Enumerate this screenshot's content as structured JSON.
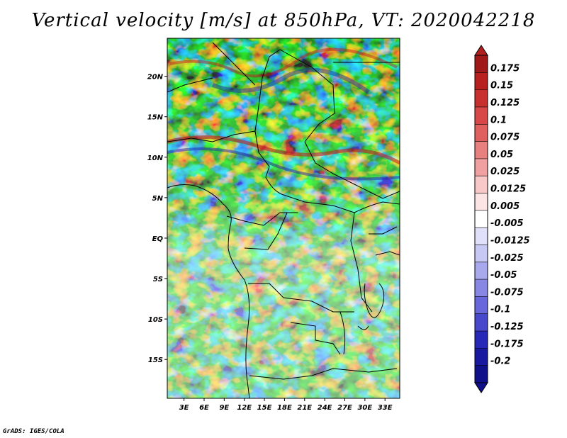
{
  "title": "Vertical velocity [m/s] at 850hPa, VT: 2020042218",
  "credit": "GrADS: IGES/COLA",
  "map": {
    "lat_labels": [
      "20N",
      "15N",
      "10N",
      "5N",
      "EQ",
      "5S",
      "10S",
      "15S"
    ],
    "lon_labels": [
      "3E",
      "6E",
      "9E",
      "12E",
      "15E",
      "18E",
      "21E",
      "24E",
      "27E",
      "30E",
      "33E"
    ],
    "lat_values": [
      20,
      15,
      10,
      5,
      0,
      -5,
      -10,
      -15
    ],
    "lon_values": [
      3,
      6,
      9,
      12,
      15,
      18,
      21,
      24,
      27,
      30,
      33
    ]
  },
  "colorbar": {
    "labels": [
      "0.175",
      "0.15",
      "0.125",
      "0.1",
      "0.075",
      "0.05",
      "0.025",
      "0.0125",
      "0.005",
      "-0.005",
      "-0.0125",
      "-0.025",
      "-0.05",
      "-0.075",
      "-0.1",
      "-0.125",
      "-0.175",
      "-0.2"
    ],
    "colors": [
      "#a01818",
      "#b82020",
      "#c83030",
      "#d84848",
      "#e06060",
      "#e88080",
      "#f0a0a0",
      "#f8c8c8",
      "#fce4e4",
      "#ffffff",
      "#e0e0fa",
      "#c8c8f4",
      "#a8a8ec",
      "#8888e4",
      "#6868dc",
      "#4848cc",
      "#2828b8",
      "#1818a0",
      "#10108a"
    ]
  }
}
